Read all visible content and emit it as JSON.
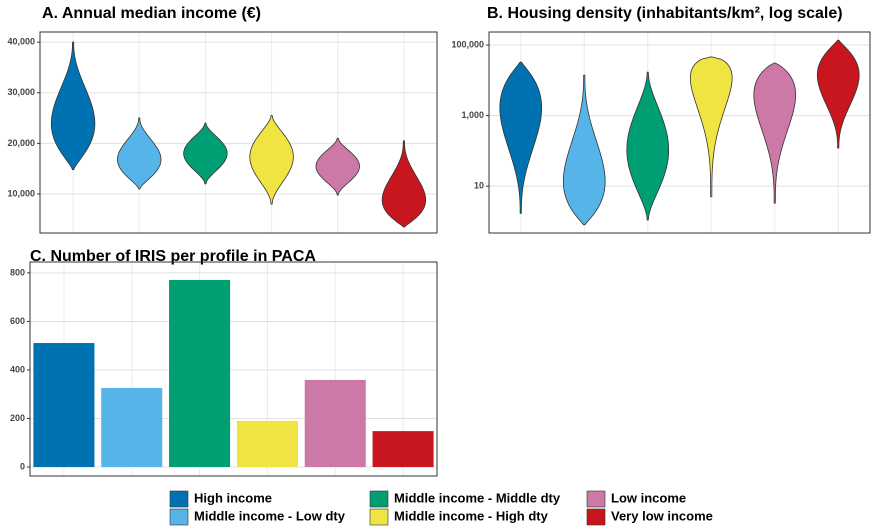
{
  "legend": [
    {
      "name": "High income",
      "color": "#0072B2"
    },
    {
      "name": "Middle income - Low dty",
      "color": "#56B4E9"
    },
    {
      "name": "Middle income - Middle dty",
      "color": "#009E73"
    },
    {
      "name": "Middle income - High dty",
      "color": "#F0E442"
    },
    {
      "name": "Low income",
      "color": "#CC79A7"
    },
    {
      "name": "Very low income",
      "color": "#C7161E"
    }
  ],
  "chart_data": [
    {
      "type": "violin",
      "title": "A. Annual median income (€)",
      "violins": [
        {
          "min": 14800,
          "mode": 23000,
          "max": 40000
        },
        {
          "min": 11000,
          "mode": 16500,
          "max": 25000
        },
        {
          "min": 12000,
          "mode": 18000,
          "max": 24000
        },
        {
          "min": 8000,
          "mode": 17500,
          "max": 25500
        },
        {
          "min": 9800,
          "mode": 15500,
          "max": 21000
        },
        {
          "min": 3500,
          "mode": 8000,
          "max": 20500
        }
      ],
      "ylim": [
        2300,
        42000
      ],
      "yticks": [
        {
          "value": 10000,
          "label": "10,000"
        },
        {
          "value": 20000,
          "label": "20,000"
        },
        {
          "value": 30000,
          "label": "30,000"
        },
        {
          "value": 40000,
          "label": "40,000"
        }
      ],
      "grid": true
    },
    {
      "type": "violin",
      "title": "B. Housing density (inhabitants/km², log scale)",
      "log": true,
      "violins": [
        {
          "min": 1.7,
          "mode": 2800,
          "max": 33000
        },
        {
          "min": 0.8,
          "mode": 8,
          "max": 14000
        },
        {
          "min": 1.1,
          "mode": 100,
          "max": 17000
        },
        {
          "min": 5,
          "mode": 27000,
          "max": 46000
        },
        {
          "min": 3.3,
          "mode": 7400,
          "max": 31000
        },
        {
          "min": 120,
          "mode": 19500,
          "max": 138000
        }
      ],
      "ylim": [
        0.47,
        234000
      ],
      "yticks": [
        10,
        {
          "value": 1000,
          "label": "1,000"
        },
        {
          "value": 100000,
          "label": "100,000"
        }
      ],
      "grid": true
    },
    {
      "type": "bar",
      "title": "C. Number of IRIS per profile in PACA",
      "values": [
        511,
        326,
        771,
        190,
        359,
        148
      ],
      "ylim": [
        -37,
        845
      ],
      "yticks": [
        0,
        200,
        400,
        600,
        800
      ],
      "grid": true
    }
  ]
}
